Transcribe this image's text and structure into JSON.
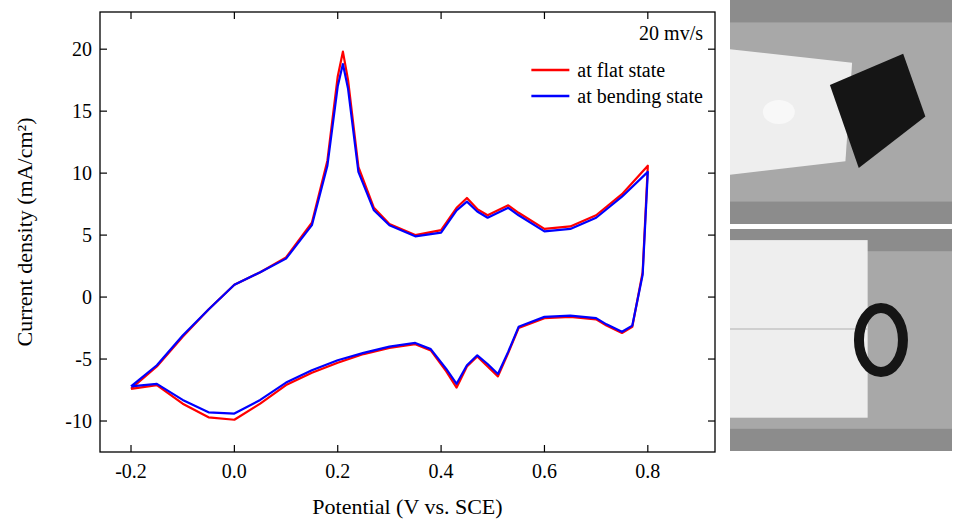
{
  "chart_data": {
    "type": "line",
    "annotation": "20 mv/s",
    "x_label": "Potential (V vs. SCE)",
    "y_label": "Current density (mA/cm²)",
    "xlim": [
      -0.26,
      0.93
    ],
    "ylim": [
      -12.5,
      23
    ],
    "xticks": [
      -0.2,
      {
        "value": 0,
        "label": "0.0"
      },
      0.2,
      0.4,
      0.6,
      0.8
    ],
    "yticks": [
      -10,
      -5,
      0,
      5,
      10,
      15,
      20
    ],
    "legend": "upper right",
    "series": [
      {
        "name": "at flat state",
        "color": "#ff0000",
        "x": [
          -0.2,
          -0.15,
          -0.1,
          -0.05,
          0,
          0.05,
          0.1,
          0.15,
          0.18,
          0.2,
          0.21,
          0.22,
          0.24,
          0.27,
          0.3,
          0.35,
          0.4,
          0.43,
          0.45,
          0.47,
          0.49,
          0.51,
          0.53,
          0.55,
          0.6,
          0.65,
          0.7,
          0.75,
          0.8,
          0.79,
          0.77,
          0.75,
          0.72,
          0.7,
          0.65,
          0.6,
          0.55,
          0.53,
          0.51,
          0.49,
          0.47,
          0.45,
          0.43,
          0.41,
          0.38,
          0.35,
          0.3,
          0.25,
          0.2,
          0.15,
          0.1,
          0.05,
          0,
          -0.05,
          -0.1,
          -0.15,
          -0.2
        ],
        "values": [
          -7.4,
          -5.6,
          -3.2,
          -1.0,
          1.0,
          2.0,
          3.2,
          6.0,
          11.0,
          17.8,
          19.8,
          17.5,
          10.5,
          7.2,
          5.9,
          5.0,
          5.4,
          7.2,
          8.0,
          7.1,
          6.6,
          7.0,
          7.4,
          6.8,
          5.5,
          5.7,
          6.6,
          8.3,
          10.6,
          2.0,
          -2.4,
          -2.9,
          -2.3,
          -1.8,
          -1.6,
          -1.7,
          -2.5,
          -4.5,
          -6.4,
          -5.6,
          -4.8,
          -5.6,
          -7.3,
          -6.0,
          -4.3,
          -3.8,
          -4.1,
          -4.6,
          -5.3,
          -6.1,
          -7.1,
          -8.6,
          -9.9,
          -9.7,
          -8.6,
          -7.1,
          -7.4
        ]
      },
      {
        "name": "at bending state",
        "color": "#0000ff",
        "x": [
          -0.2,
          -0.15,
          -0.1,
          -0.05,
          0,
          0.05,
          0.1,
          0.15,
          0.18,
          0.2,
          0.21,
          0.22,
          0.24,
          0.27,
          0.3,
          0.35,
          0.4,
          0.43,
          0.45,
          0.47,
          0.49,
          0.51,
          0.53,
          0.55,
          0.6,
          0.65,
          0.7,
          0.75,
          0.8,
          0.79,
          0.77,
          0.75,
          0.72,
          0.7,
          0.65,
          0.6,
          0.55,
          0.53,
          0.51,
          0.49,
          0.47,
          0.45,
          0.43,
          0.41,
          0.38,
          0.35,
          0.3,
          0.25,
          0.2,
          0.15,
          0.1,
          0.05,
          0,
          -0.05,
          -0.1,
          -0.15,
          -0.2
        ],
        "values": [
          -7.2,
          -5.5,
          -3.1,
          -1.0,
          1.0,
          2.0,
          3.1,
          5.8,
          10.6,
          17.0,
          18.8,
          16.8,
          10.1,
          7.0,
          5.8,
          4.9,
          5.2,
          7.0,
          7.7,
          6.9,
          6.4,
          6.8,
          7.2,
          6.6,
          5.3,
          5.5,
          6.4,
          8.1,
          10.1,
          1.8,
          -2.3,
          -2.8,
          -2.2,
          -1.7,
          -1.5,
          -1.6,
          -2.4,
          -4.4,
          -6.2,
          -5.4,
          -4.7,
          -5.5,
          -7.0,
          -5.8,
          -4.2,
          -3.7,
          -4.0,
          -4.5,
          -5.1,
          -5.9,
          -6.9,
          -8.3,
          -9.4,
          -9.3,
          -8.3,
          -7.0,
          -7.2
        ]
      }
    ]
  }
}
